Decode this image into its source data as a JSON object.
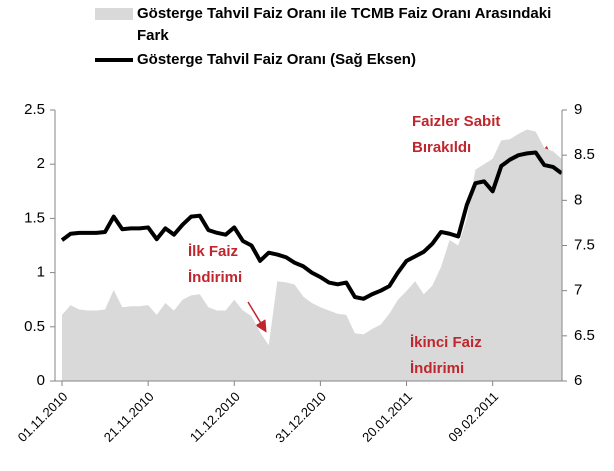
{
  "chart_data": {
    "type": "area-line",
    "categories": [
      "01.11.2010",
      "03.11.2010",
      "05.11.2010",
      "07.11.2010",
      "09.11.2010",
      "11.11.2010",
      "13.11.2010",
      "15.11.2010",
      "17.11.2010",
      "19.11.2010",
      "21.11.2010",
      "23.11.2010",
      "25.11.2010",
      "27.11.2010",
      "29.11.2010",
      "01.12.2010",
      "03.12.2010",
      "05.12.2010",
      "07.12.2010",
      "09.12.2010",
      "11.12.2010",
      "13.12.2010",
      "15.12.2010",
      "17.12.2010",
      "19.12.2010",
      "21.12.2010",
      "23.12.2010",
      "25.12.2010",
      "27.12.2010",
      "29.12.2010",
      "31.12.2010",
      "02.01.2011",
      "04.01.2011",
      "06.01.2011",
      "08.01.2011",
      "10.01.2011",
      "12.01.2011",
      "14.01.2011",
      "16.01.2011",
      "18.01.2011",
      "20.01.2011",
      "22.01.2011",
      "24.01.2011",
      "26.01.2011",
      "28.01.2011",
      "30.01.2011",
      "01.02.2011",
      "03.02.2011",
      "05.02.2011",
      "07.02.2011",
      "09.02.2011",
      "11.02.2011",
      "13.02.2011",
      "15.02.2011",
      "17.02.2011",
      "19.02.2011",
      "21.02.2011",
      "23.02.2011",
      "25.02.2011"
    ],
    "xtick_indices": [
      0,
      10,
      20,
      30,
      40,
      50
    ],
    "series": [
      {
        "name": "Gösterge Tahvil Faiz Oranı ile TCMB Faiz Oranı Arasındaki Fark",
        "color": "#d9d9d9",
        "kind": "area",
        "axis": "y",
        "values": [
          0.61,
          0.7,
          0.66,
          0.65,
          0.65,
          0.66,
          0.84,
          0.68,
          0.69,
          0.69,
          0.7,
          0.61,
          0.72,
          0.65,
          0.75,
          0.79,
          0.8,
          0.68,
          0.65,
          0.65,
          0.75,
          0.65,
          0.6,
          0.45,
          0.33,
          0.92,
          0.91,
          0.89,
          0.78,
          0.72,
          0.68,
          0.65,
          0.62,
          0.61,
          0.44,
          0.43,
          0.48,
          0.52,
          0.62,
          0.75,
          0.83,
          0.92,
          0.8,
          0.88,
          1.05,
          1.3,
          1.25,
          1.5,
          1.95,
          2.0,
          2.05,
          2.22,
          2.23,
          2.28,
          2.32,
          2.3,
          2.15,
          2.12,
          2.05
        ]
      },
      {
        "name": "Gösterge Tahvil Faiz Oranı (Sağ Eksen)",
        "color": "#000000",
        "kind": "line",
        "axis": "y2",
        "values": [
          7.56,
          7.63,
          7.64,
          7.64,
          7.64,
          7.65,
          7.82,
          7.68,
          7.69,
          7.69,
          7.7,
          7.57,
          7.69,
          7.62,
          7.73,
          7.82,
          7.83,
          7.67,
          7.64,
          7.62,
          7.7,
          7.55,
          7.5,
          7.33,
          7.42,
          7.4,
          7.37,
          7.31,
          7.27,
          7.2,
          7.15,
          7.09,
          7.07,
          7.09,
          6.93,
          6.91,
          6.96,
          7.0,
          7.05,
          7.2,
          7.33,
          7.38,
          7.43,
          7.52,
          7.65,
          7.63,
          7.6,
          7.95,
          8.19,
          8.21,
          8.1,
          8.38,
          8.45,
          8.5,
          8.52,
          8.53,
          8.39,
          8.37,
          8.3
        ]
      }
    ],
    "ylim": [
      0,
      2.5
    ],
    "yticks": [
      0,
      0.5,
      1,
      1.5,
      2,
      2.5
    ],
    "y2lim": [
      6,
      9
    ],
    "y2ticks": [
      6,
      6.5,
      7,
      7.5,
      8,
      8.5,
      9
    ],
    "annotations": [
      {
        "lines": [
          "Faizler Sabit",
          "Bırakıldı"
        ]
      },
      {
        "lines": [
          "İlk Faiz",
          "İndirimi"
        ]
      },
      {
        "lines": [
          "İkinci Faiz",
          "İndirimi"
        ]
      }
    ]
  }
}
